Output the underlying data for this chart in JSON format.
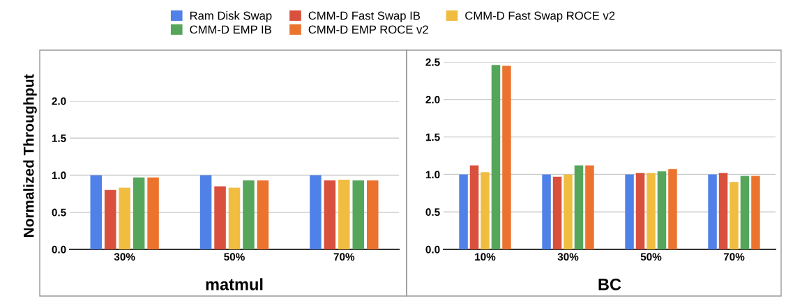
{
  "chart_data": [
    {
      "type": "bar",
      "xlabel": "matmul",
      "ylabel": "Normalized Throughput",
      "categories": [
        "30%",
        "50%",
        "70%"
      ],
      "ylim": [
        0,
        2.0
      ],
      "yticks": [
        {
          "value": 0,
          "label": "0.0"
        },
        0.5,
        {
          "value": 1,
          "label": "1.0"
        },
        1.5,
        {
          "value": 2,
          "label": "2.0"
        }
      ],
      "grid": "y",
      "legend": "top",
      "series": [
        {
          "name": "Ram Disk Swap",
          "color": "#4f81e8",
          "values": [
            1.0,
            1.0,
            1.0
          ]
        },
        {
          "name": "CMM-D Fast Swap IB",
          "color": "#d9503c",
          "values": [
            0.8,
            0.85,
            0.93
          ]
        },
        {
          "name": "CMM-D Fast Swap ROCE v2",
          "color": "#f0bd41",
          "values": [
            0.83,
            0.83,
            0.94
          ]
        },
        {
          "name": "CMM-D EMP IB",
          "color": "#55a65b",
          "values": [
            0.97,
            0.93,
            0.93
          ]
        },
        {
          "name": "CMM-D EMP ROCE v2",
          "color": "#ec732e",
          "values": [
            0.97,
            0.93,
            0.93
          ]
        }
      ]
    },
    {
      "type": "bar",
      "xlabel": "BC",
      "categories": [
        "10%",
        "30%",
        "50%",
        "70%"
      ],
      "ylim": [
        0,
        2.5
      ],
      "yticks": [
        {
          "value": 0,
          "label": "0.0"
        },
        0.5,
        {
          "value": 1,
          "label": "1.0"
        },
        1.5,
        {
          "value": 2,
          "label": "2.0"
        },
        2.5
      ],
      "grid": "y",
      "series": [
        {
          "color": "#4f81e8",
          "values": [
            1.0,
            1.0,
            1.0,
            1.0
          ]
        },
        {
          "color": "#d9503c",
          "values": [
            1.12,
            0.97,
            1.02,
            1.02
          ]
        },
        {
          "color": "#f0bd41",
          "values": [
            1.03,
            1.0,
            1.02,
            0.9
          ]
        },
        {
          "color": "#55a65b",
          "values": [
            2.46,
            1.12,
            1.04,
            0.98
          ]
        },
        {
          "color": "#ec732e",
          "values": [
            2.45,
            1.12,
            1.07,
            0.98
          ]
        }
      ]
    }
  ]
}
